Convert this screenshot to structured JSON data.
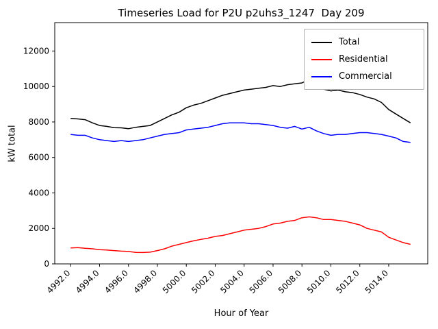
{
  "chart_data": {
    "type": "line",
    "title": "Timeseries Load for P2U p2uhs3_1247  Day 209",
    "xlabel": "Hour of Year",
    "ylabel": "kW total",
    "xlim": [
      4990.9,
      5016.7
    ],
    "ylim": [
      0,
      13600
    ],
    "grid": false,
    "legend_position": "upper right",
    "xticks": [
      4992,
      4994,
      4996,
      4998,
      5000,
      5002,
      5004,
      5006,
      5008,
      5010,
      5012,
      5014
    ],
    "xtick_labels": [
      "4992.0",
      "4994.0",
      "4996.0",
      "4998.0",
      "5000.0",
      "5002.0",
      "5004.0",
      "5006.0",
      "5008.0",
      "5010.0",
      "5012.0",
      "5014.0"
    ],
    "yticks": [
      0,
      2000,
      4000,
      6000,
      8000,
      10000,
      12000
    ],
    "ytick_labels": [
      "0",
      "2000",
      "4000",
      "6000",
      "8000",
      "10000",
      "12000"
    ],
    "x": [
      4992.0,
      4992.5,
      4993.0,
      4993.5,
      4994.0,
      4994.5,
      4995.0,
      4995.5,
      4996.0,
      4996.5,
      4997.0,
      4997.5,
      4998.0,
      4998.5,
      4999.0,
      4999.5,
      5000.0,
      5000.5,
      5001.0,
      5001.5,
      5002.0,
      5002.5,
      5003.0,
      5003.5,
      5004.0,
      5004.5,
      5005.0,
      5005.5,
      5006.0,
      5006.5,
      5007.0,
      5007.5,
      5008.0,
      5008.5,
      5009.0,
      5009.5,
      5010.0,
      5010.5,
      5011.0,
      5011.5,
      5012.0,
      5012.5,
      5013.0,
      5013.5,
      5014.0,
      5014.5,
      5015.0,
      5015.5
    ],
    "series": [
      {
        "name": "Total",
        "color": "#000000",
        "values": [
          8200,
          8170,
          8130,
          7950,
          7800,
          7750,
          7680,
          7670,
          7620,
          7700,
          7750,
          7800,
          8000,
          8200,
          8400,
          8550,
          8800,
          8950,
          9050,
          9200,
          9350,
          9500,
          9600,
          9700,
          9800,
          9850,
          9900,
          9950,
          10050,
          10000,
          10100,
          10150,
          10200,
          10400,
          10300,
          9850,
          9750,
          9800,
          9700,
          9650,
          9550,
          9400,
          9300,
          9100,
          8700,
          8450,
          8200,
          7950
        ]
      },
      {
        "name": "Residential",
        "color": "#ff0000",
        "values": [
          900,
          920,
          880,
          850,
          800,
          780,
          750,
          720,
          700,
          650,
          640,
          660,
          750,
          850,
          1000,
          1100,
          1200,
          1300,
          1380,
          1450,
          1550,
          1600,
          1700,
          1800,
          1900,
          1950,
          2000,
          2100,
          2250,
          2300,
          2400,
          2450,
          2600,
          2650,
          2600,
          2500,
          2500,
          2450,
          2400,
          2300,
          2200,
          2000,
          1900,
          1800,
          1500,
          1350,
          1200,
          1100
        ]
      },
      {
        "name": "Commercial",
        "color": "#0000ff",
        "values": [
          7300,
          7250,
          7250,
          7100,
          7000,
          6950,
          6900,
          6950,
          6900,
          6950,
          7000,
          7100,
          7200,
          7300,
          7350,
          7400,
          7550,
          7600,
          7650,
          7700,
          7800,
          7900,
          7950,
          7950,
          7950,
          7900,
          7900,
          7850,
          7800,
          7700,
          7650,
          7750,
          7600,
          7700,
          7500,
          7350,
          7250,
          7300,
          7300,
          7350,
          7400,
          7400,
          7350,
          7300,
          7200,
          7100,
          6900,
          6850
        ]
      }
    ]
  }
}
